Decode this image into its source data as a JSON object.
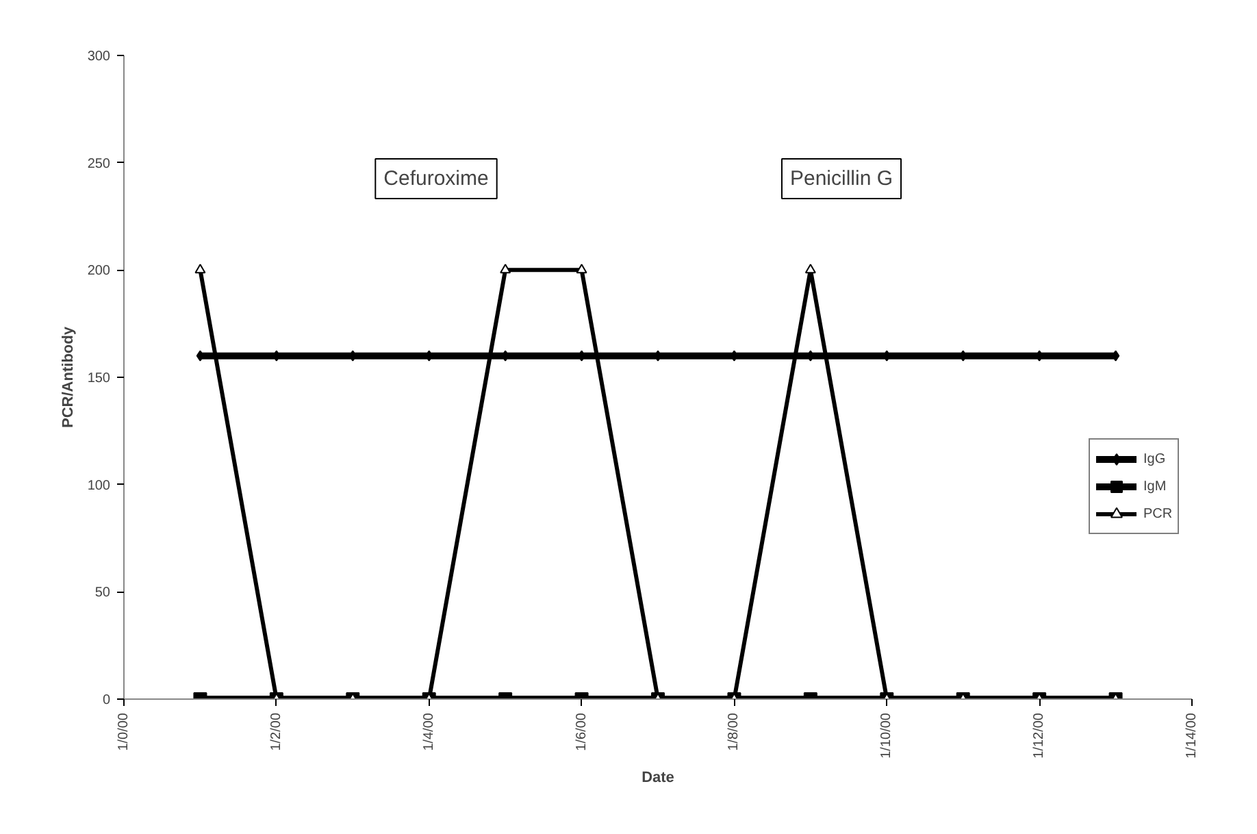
{
  "chart_data": {
    "type": "line",
    "xlabel": "Date",
    "ylabel": "PCR/Antibody",
    "x": [
      "2000-01-01",
      "2000-01-02",
      "2000-01-03",
      "2000-01-04",
      "2000-01-05",
      "2000-01-06",
      "2000-01-07",
      "2000-01-08",
      "2000-01-09",
      "2000-01-10",
      "2000-01-11",
      "2000-01-12",
      "2000-01-13"
    ],
    "series": [
      {
        "name": "IgG",
        "color": "#000000",
        "marker": "diamond",
        "values": [
          160,
          160,
          160,
          160,
          160,
          160,
          160,
          160,
          160,
          160,
          160,
          160,
          160
        ]
      },
      {
        "name": "IgM",
        "color": "#000000",
        "marker": "square",
        "values": [
          0,
          0,
          0,
          0,
          0,
          0,
          0,
          0,
          0,
          0,
          0,
          0,
          0
        ]
      },
      {
        "name": "PCR",
        "color": "#000000",
        "marker": "triangle",
        "values": [
          200,
          0,
          0,
          0,
          200,
          200,
          0,
          0,
          200,
          0,
          0,
          0,
          0
        ]
      }
    ],
    "xlim": [
      "1999-12-31",
      "2000-01-14"
    ],
    "xticks": [
      {
        "value": "1999-12-31",
        "label": "1/0/00"
      },
      {
        "value": "2000-01-02",
        "label": "1/2/00"
      },
      {
        "value": "2000-01-04",
        "label": "1/4/00"
      },
      {
        "value": "2000-01-06",
        "label": "1/6/00"
      },
      {
        "value": "2000-01-08",
        "label": "1/8/00"
      },
      {
        "value": "2000-01-10",
        "label": "1/10/00"
      },
      {
        "value": "2000-01-12",
        "label": "1/12/00"
      },
      {
        "value": "2000-01-14",
        "label": "1/14/00"
      }
    ],
    "ylim": [
      0,
      300
    ],
    "yticks": [
      0,
      50,
      100,
      150,
      200,
      250,
      300
    ],
    "annotations": [
      "Cefuroxime",
      "Penicillin G"
    ],
    "grid": false,
    "legend": "right",
    "line_style": "solid"
  }
}
